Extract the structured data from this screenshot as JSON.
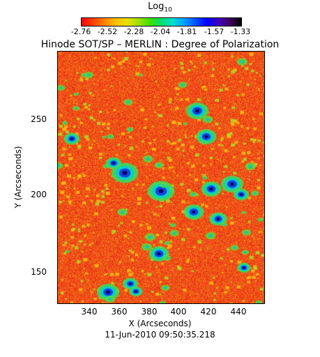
{
  "colorbar": {
    "label_main": "Log",
    "label_sub": "10",
    "ticks": [
      "-2.76",
      "-2.52",
      "-2.28",
      "-2.04",
      "-1.81",
      "-1.57",
      "-1.33"
    ]
  },
  "title": "Hinode SOT/SP – MERLIN : Degree of Polarization",
  "axes": {
    "xlabel": "X (Arcseconds)",
    "ylabel": "Y (Arcseconds)",
    "xticks": [
      "340",
      "360",
      "380",
      "400",
      "420",
      "440"
    ],
    "yticks": [
      "250",
      "200",
      "150"
    ]
  },
  "timestamp": "11-Jun-2010 09:50:35.218"
}
